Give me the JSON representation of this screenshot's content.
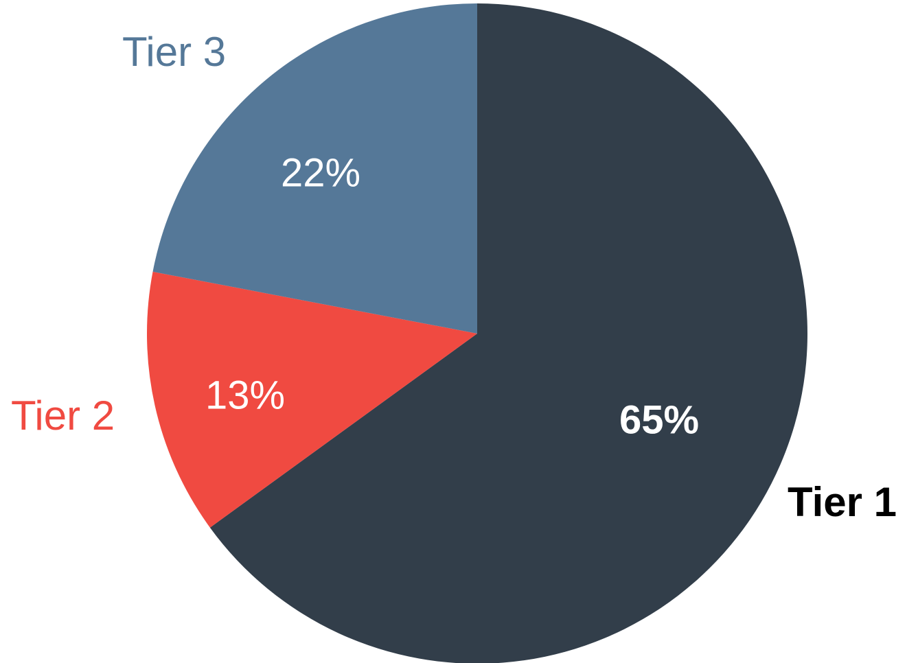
{
  "chart_data": {
    "type": "pie",
    "categories": [
      "Tier 1",
      "Tier 2",
      "Tier 3"
    ],
    "values": [
      65,
      13,
      22
    ],
    "value_labels": [
      "65%",
      "13%",
      "22%"
    ],
    "colors": [
      "#323e4a",
      "#f04a41",
      "#557898"
    ],
    "category_label_colors": [
      "#000000",
      "#f04a41",
      "#557898"
    ],
    "start_angle": "12 o'clock",
    "direction": "clockwise",
    "legend": "none (labels placed next to slices)"
  }
}
